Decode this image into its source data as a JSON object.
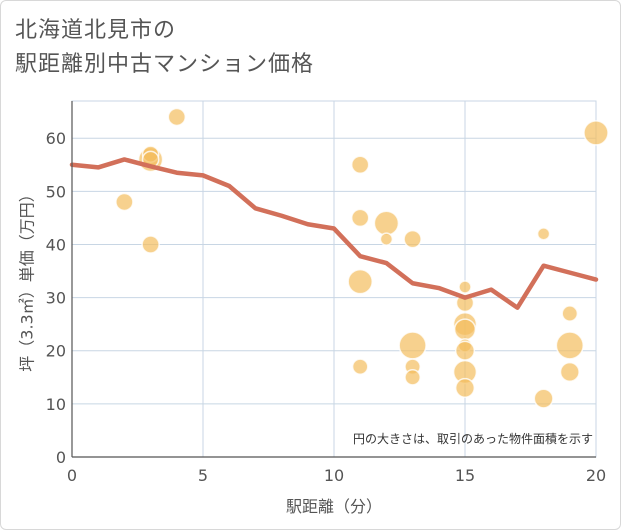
{
  "title": {
    "line1": "北海道北見市の",
    "line2": "駅距離別中古マンション価格"
  },
  "chart_data": {
    "type": "scatter",
    "xlabel": "駅距離（分）",
    "ylabel": "坪（3.3㎡）単価（万円）",
    "xlim": [
      0,
      20
    ],
    "ylim": [
      0,
      67
    ],
    "xticks": [
      0,
      5,
      10,
      15,
      20
    ],
    "yticks": [
      0,
      10,
      20,
      30,
      40,
      50,
      60
    ],
    "grid": true,
    "annotation": "円の大きさは、取引のあった物件面積を示す",
    "colors": {
      "bubble": "#f3bd5e",
      "line": "#d2705a",
      "grid": "#c8d6e4"
    },
    "bubbles": [
      {
        "x": 2,
        "y": 48,
        "size": 1.0
      },
      {
        "x": 3,
        "y": 56,
        "size": 2.0
      },
      {
        "x": 3,
        "y": 57,
        "size": 0.9
      },
      {
        "x": 3,
        "y": 56,
        "size": 0.9
      },
      {
        "x": 3,
        "y": 40,
        "size": 1.0
      },
      {
        "x": 4,
        "y": 64,
        "size": 1.0
      },
      {
        "x": 11,
        "y": 55,
        "size": 1.0
      },
      {
        "x": 11,
        "y": 45,
        "size": 1.0
      },
      {
        "x": 11,
        "y": 33,
        "size": 2.0
      },
      {
        "x": 11,
        "y": 17,
        "size": 0.8
      },
      {
        "x": 12,
        "y": 44,
        "size": 2.0
      },
      {
        "x": 12,
        "y": 41,
        "size": 0.5
      },
      {
        "x": 13,
        "y": 41,
        "size": 1.0
      },
      {
        "x": 13,
        "y": 21,
        "size": 2.5
      },
      {
        "x": 13,
        "y": 17,
        "size": 0.8
      },
      {
        "x": 13,
        "y": 15,
        "size": 0.8
      },
      {
        "x": 15,
        "y": 32,
        "size": 0.5
      },
      {
        "x": 15,
        "y": 29,
        "size": 1.0
      },
      {
        "x": 15,
        "y": 25,
        "size": 1.8
      },
      {
        "x": 15,
        "y": 24,
        "size": 1.5
      },
      {
        "x": 15,
        "y": 21,
        "size": 0.6
      },
      {
        "x": 15,
        "y": 20,
        "size": 1.2
      },
      {
        "x": 15,
        "y": 16,
        "size": 1.8
      },
      {
        "x": 15,
        "y": 13,
        "size": 1.2
      },
      {
        "x": 18,
        "y": 42,
        "size": 0.5
      },
      {
        "x": 18,
        "y": 11,
        "size": 1.2
      },
      {
        "x": 19,
        "y": 27,
        "size": 0.8
      },
      {
        "x": 19,
        "y": 21,
        "size": 2.5
      },
      {
        "x": 19,
        "y": 16,
        "size": 1.2
      },
      {
        "x": 20,
        "y": 61,
        "size": 2.0
      }
    ],
    "line": {
      "x": [
        0,
        1,
        2,
        3,
        4,
        5,
        6,
        7,
        8,
        9,
        10,
        11,
        12,
        13,
        14,
        15,
        16,
        17,
        18,
        19,
        20
      ],
      "y": [
        55,
        54.5,
        56,
        54.7,
        53.5,
        53,
        51,
        46.8,
        45.4,
        43.8,
        43,
        37.8,
        36.5,
        32.7,
        31.8,
        30,
        31.5,
        28.1,
        36,
        34.7,
        33.4
      ]
    }
  }
}
